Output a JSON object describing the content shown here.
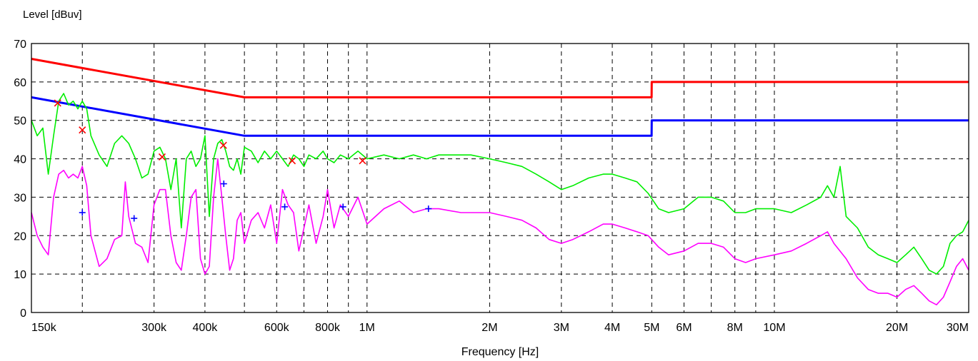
{
  "chart_data": {
    "type": "line",
    "title": "",
    "ylabel": "Level [dBuv]",
    "xlabel": "Frequency [Hz]",
    "x_scale": "log",
    "xlim": [
      150000,
      30000000
    ],
    "ylim": [
      0,
      70
    ],
    "grid": true,
    "legend": "none",
    "y_ticks": [
      {
        "value": 0,
        "label": "0"
      },
      {
        "value": 10,
        "label": "10"
      },
      {
        "value": 20,
        "label": "20"
      },
      {
        "value": 30,
        "label": "30"
      },
      {
        "value": 40,
        "label": "40"
      },
      {
        "value": 50,
        "label": "50"
      },
      {
        "value": 60,
        "label": "60"
      },
      {
        "value": 70,
        "label": "70"
      }
    ],
    "x_ticks": [
      {
        "value": 150000,
        "label": "150k"
      },
      {
        "value": 300000,
        "label": "300k"
      },
      {
        "value": 400000,
        "label": "400k"
      },
      {
        "value": 600000,
        "label": "600k"
      },
      {
        "value": 800000,
        "label": "800k"
      },
      {
        "value": 1000000,
        "label": "1M"
      },
      {
        "value": 2000000,
        "label": "2M"
      },
      {
        "value": 3000000,
        "label": "3M"
      },
      {
        "value": 4000000,
        "label": "4M"
      },
      {
        "value": 5000000,
        "label": "5M"
      },
      {
        "value": 6000000,
        "label": "6M"
      },
      {
        "value": 8000000,
        "label": "8M"
      },
      {
        "value": 10000000,
        "label": "10M"
      },
      {
        "value": 20000000,
        "label": "20M"
      },
      {
        "value": 30000000,
        "label": "30M"
      }
    ],
    "grid_x": [
      200000,
      300000,
      400000,
      500000,
      600000,
      700000,
      800000,
      900000,
      1000000,
      2000000,
      3000000,
      4000000,
      5000000,
      6000000,
      7000000,
      8000000,
      9000000,
      10000000,
      20000000
    ],
    "series": [
      {
        "color": "#ff0000",
        "points": [
          [
            150000,
            66
          ],
          [
            500000,
            56
          ],
          [
            4995000,
            56
          ],
          [
            5000000,
            60
          ],
          [
            30000000,
            60
          ]
        ]
      },
      {
        "color": "#0000ff",
        "points": [
          [
            150000,
            56
          ],
          [
            500000,
            46
          ],
          [
            4995000,
            46
          ],
          [
            5000000,
            50
          ],
          [
            30000000,
            50
          ]
        ]
      },
      {
        "color": "#00ee00",
        "points": [
          [
            150000,
            50
          ],
          [
            155000,
            46
          ],
          [
            160000,
            48
          ],
          [
            165000,
            36
          ],
          [
            170000,
            46
          ],
          [
            175000,
            55
          ],
          [
            180000,
            57
          ],
          [
            185000,
            54
          ],
          [
            190000,
            55
          ],
          [
            195000,
            53
          ],
          [
            200000,
            55
          ],
          [
            205000,
            53
          ],
          [
            210000,
            46
          ],
          [
            220000,
            41
          ],
          [
            230000,
            38
          ],
          [
            240000,
            44
          ],
          [
            250000,
            46
          ],
          [
            260000,
            44
          ],
          [
            270000,
            40
          ],
          [
            280000,
            35
          ],
          [
            290000,
            36
          ],
          [
            300000,
            42
          ],
          [
            310000,
            43
          ],
          [
            320000,
            40
          ],
          [
            330000,
            32
          ],
          [
            340000,
            40
          ],
          [
            350000,
            22
          ],
          [
            360000,
            40
          ],
          [
            370000,
            42
          ],
          [
            380000,
            38
          ],
          [
            390000,
            40
          ],
          [
            400000,
            46
          ],
          [
            410000,
            25
          ],
          [
            420000,
            40
          ],
          [
            430000,
            44
          ],
          [
            440000,
            45
          ],
          [
            450000,
            42
          ],
          [
            460000,
            38
          ],
          [
            470000,
            37
          ],
          [
            480000,
            40
          ],
          [
            490000,
            36
          ],
          [
            500000,
            43
          ],
          [
            520000,
            42
          ],
          [
            540000,
            39
          ],
          [
            560000,
            42
          ],
          [
            580000,
            40
          ],
          [
            600000,
            42
          ],
          [
            620000,
            40
          ],
          [
            640000,
            38
          ],
          [
            660000,
            41
          ],
          [
            680000,
            40
          ],
          [
            700000,
            38
          ],
          [
            720000,
            41
          ],
          [
            750000,
            40
          ],
          [
            780000,
            42
          ],
          [
            800000,
            40
          ],
          [
            830000,
            39
          ],
          [
            860000,
            41
          ],
          [
            900000,
            40
          ],
          [
            950000,
            42
          ],
          [
            1000000,
            40
          ],
          [
            1100000,
            41
          ],
          [
            1200000,
            40
          ],
          [
            1300000,
            41
          ],
          [
            1400000,
            40
          ],
          [
            1500000,
            41
          ],
          [
            1600000,
            41
          ],
          [
            1800000,
            41
          ],
          [
            2000000,
            40
          ],
          [
            2200000,
            39
          ],
          [
            2400000,
            38
          ],
          [
            2600000,
            36
          ],
          [
            2800000,
            34
          ],
          [
            3000000,
            32
          ],
          [
            3200000,
            33
          ],
          [
            3500000,
            35
          ],
          [
            3800000,
            36
          ],
          [
            4000000,
            36
          ],
          [
            4300000,
            35
          ],
          [
            4600000,
            34
          ],
          [
            4900000,
            31
          ],
          [
            5200000,
            27
          ],
          [
            5500000,
            26
          ],
          [
            6000000,
            27
          ],
          [
            6500000,
            30
          ],
          [
            7000000,
            30
          ],
          [
            7500000,
            29
          ],
          [
            8000000,
            26
          ],
          [
            8500000,
            26
          ],
          [
            9000000,
            27
          ],
          [
            10000000,
            27
          ],
          [
            11000000,
            26
          ],
          [
            12000000,
            28
          ],
          [
            13000000,
            30
          ],
          [
            13500000,
            33
          ],
          [
            14000000,
            30
          ],
          [
            14500000,
            38
          ],
          [
            15000000,
            25
          ],
          [
            16000000,
            22
          ],
          [
            17000000,
            17
          ],
          [
            18000000,
            15
          ],
          [
            19000000,
            14
          ],
          [
            20000000,
            13
          ],
          [
            21000000,
            15
          ],
          [
            22000000,
            17
          ],
          [
            23000000,
            14
          ],
          [
            24000000,
            11
          ],
          [
            25000000,
            10
          ],
          [
            26000000,
            12
          ],
          [
            27000000,
            18
          ],
          [
            28000000,
            20
          ],
          [
            29000000,
            21
          ],
          [
            30000000,
            24
          ]
        ]
      },
      {
        "color": "#ff00ff",
        "points": [
          [
            150000,
            26
          ],
          [
            155000,
            20
          ],
          [
            160000,
            17
          ],
          [
            165000,
            15
          ],
          [
            170000,
            30
          ],
          [
            175000,
            36
          ],
          [
            180000,
            37
          ],
          [
            185000,
            35
          ],
          [
            190000,
            36
          ],
          [
            195000,
            35
          ],
          [
            200000,
            38
          ],
          [
            205000,
            33
          ],
          [
            210000,
            20
          ],
          [
            220000,
            12
          ],
          [
            230000,
            14
          ],
          [
            240000,
            19
          ],
          [
            250000,
            20
          ],
          [
            255000,
            34
          ],
          [
            260000,
            25
          ],
          [
            270000,
            18
          ],
          [
            280000,
            17
          ],
          [
            290000,
            13
          ],
          [
            300000,
            28
          ],
          [
            310000,
            32
          ],
          [
            320000,
            32
          ],
          [
            330000,
            20
          ],
          [
            340000,
            13
          ],
          [
            350000,
            11
          ],
          [
            360000,
            20
          ],
          [
            370000,
            30
          ],
          [
            380000,
            32
          ],
          [
            390000,
            14
          ],
          [
            400000,
            10
          ],
          [
            410000,
            12
          ],
          [
            420000,
            30
          ],
          [
            430000,
            40
          ],
          [
            440000,
            30
          ],
          [
            450000,
            20
          ],
          [
            460000,
            11
          ],
          [
            470000,
            14
          ],
          [
            480000,
            24
          ],
          [
            490000,
            26
          ],
          [
            500000,
            18
          ],
          [
            520000,
            24
          ],
          [
            540000,
            26
          ],
          [
            560000,
            22
          ],
          [
            580000,
            28
          ],
          [
            600000,
            18
          ],
          [
            620000,
            32
          ],
          [
            640000,
            28
          ],
          [
            660000,
            26
          ],
          [
            680000,
            16
          ],
          [
            700000,
            22
          ],
          [
            720000,
            28
          ],
          [
            750000,
            18
          ],
          [
            780000,
            25
          ],
          [
            800000,
            32
          ],
          [
            830000,
            22
          ],
          [
            860000,
            28
          ],
          [
            900000,
            25
          ],
          [
            950000,
            30
          ],
          [
            1000000,
            23
          ],
          [
            1100000,
            27
          ],
          [
            1200000,
            29
          ],
          [
            1300000,
            26
          ],
          [
            1400000,
            27
          ],
          [
            1500000,
            27
          ],
          [
            1700000,
            26
          ],
          [
            2000000,
            26
          ],
          [
            2200000,
            25
          ],
          [
            2400000,
            24
          ],
          [
            2600000,
            22
          ],
          [
            2800000,
            19
          ],
          [
            3000000,
            18
          ],
          [
            3200000,
            19
          ],
          [
            3500000,
            21
          ],
          [
            3800000,
            23
          ],
          [
            4000000,
            23
          ],
          [
            4300000,
            22
          ],
          [
            4600000,
            21
          ],
          [
            4900000,
            20
          ],
          [
            5200000,
            17
          ],
          [
            5500000,
            15
          ],
          [
            6000000,
            16
          ],
          [
            6500000,
            18
          ],
          [
            7000000,
            18
          ],
          [
            7500000,
            17
          ],
          [
            8000000,
            14
          ],
          [
            8500000,
            13
          ],
          [
            9000000,
            14
          ],
          [
            10000000,
            15
          ],
          [
            11000000,
            16
          ],
          [
            12000000,
            18
          ],
          [
            13000000,
            20
          ],
          [
            13500000,
            21
          ],
          [
            14000000,
            18
          ],
          [
            15000000,
            14
          ],
          [
            16000000,
            9
          ],
          [
            17000000,
            6
          ],
          [
            18000000,
            5
          ],
          [
            19000000,
            5
          ],
          [
            20000000,
            4
          ],
          [
            21000000,
            6
          ],
          [
            22000000,
            7
          ],
          [
            23000000,
            5
          ],
          [
            24000000,
            3
          ],
          [
            25000000,
            2
          ],
          [
            26000000,
            4
          ],
          [
            27000000,
            8
          ],
          [
            28000000,
            12
          ],
          [
            29000000,
            14
          ],
          [
            30000000,
            11
          ]
        ]
      }
    ],
    "markers": [
      {
        "symbol": "x",
        "color": "#ff0000",
        "points": [
          [
            174000,
            54.5
          ],
          [
            200000,
            47.5
          ],
          [
            314000,
            40.5
          ],
          [
            444000,
            43.5
          ],
          [
            655000,
            39.5
          ],
          [
            975000,
            39.5
          ]
        ]
      },
      {
        "symbol": "+",
        "color": "#0000ff",
        "points": [
          [
            200000,
            26
          ],
          [
            268000,
            24.5
          ],
          [
            445000,
            33.5
          ],
          [
            628000,
            27.5
          ],
          [
            873000,
            27.5
          ],
          [
            1415000,
            27
          ]
        ]
      }
    ]
  }
}
